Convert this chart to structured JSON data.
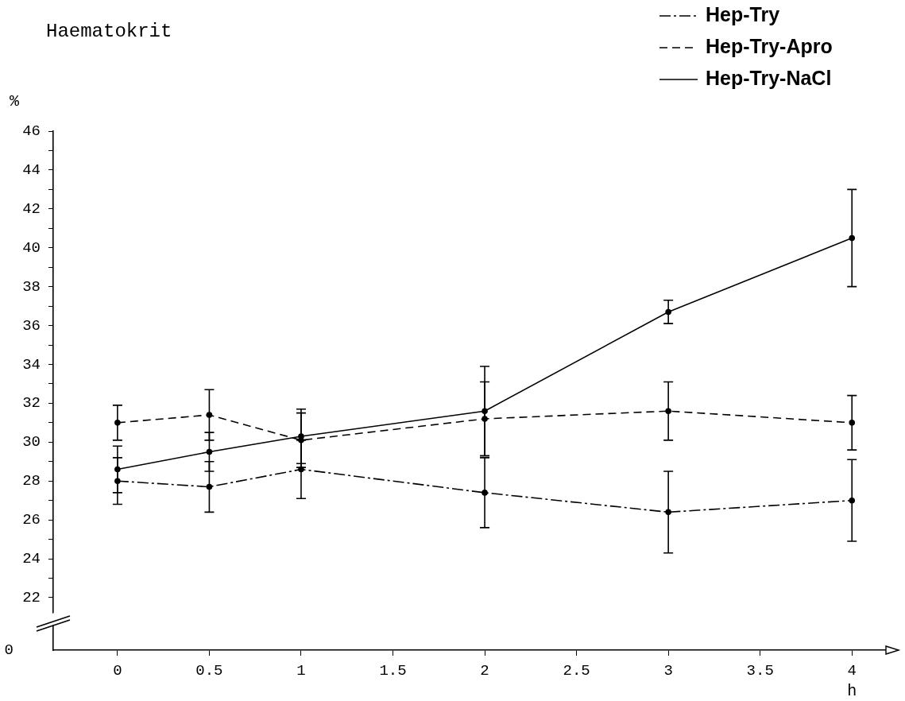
{
  "chart_data": {
    "type": "line",
    "title": "Haematokrit",
    "ylabel": "%",
    "xlabel": "h",
    "x": [
      0,
      0.5,
      1,
      2,
      3,
      4
    ],
    "series": [
      {
        "name": "Hep-Try",
        "color": "#000000",
        "line_style": "dotted",
        "values": [
          28.0,
          27.7,
          28.6,
          27.4,
          26.4,
          27.0
        ],
        "errors": [
          1.2,
          1.3,
          1.5,
          1.8,
          2.1,
          2.1
        ]
      },
      {
        "name": "Hep-Try-Apro",
        "color": "#000000",
        "line_style": "dashed",
        "values": [
          31.0,
          31.4,
          30.1,
          31.2,
          31.6,
          31.0
        ],
        "errors": [
          0.9,
          1.3,
          1.4,
          1.9,
          1.5,
          1.4
        ]
      },
      {
        "name": "Hep-Try-NaCl",
        "color": "#000000",
        "line_style": "solid",
        "values": [
          28.6,
          29.5,
          30.3,
          31.6,
          36.7,
          40.5
        ],
        "errors": [
          1.2,
          1.0,
          1.4,
          2.3,
          0.6,
          2.5
        ]
      }
    ],
    "xlim": [
      -0.35,
      4.25
    ],
    "xticks": [
      0,
      0.5,
      1,
      1.5,
      2,
      2.5,
      3,
      3.5,
      4
    ],
    "ylim": [
      19.3,
      46
    ],
    "yticks": [
      {
        "value": 21,
        "label": null
      },
      22,
      {
        "value": 23,
        "label": null
      },
      24,
      {
        "value": 25,
        "label": null
      },
      26,
      {
        "value": 27,
        "label": null
      },
      28,
      {
        "value": 29,
        "label": null
      },
      30,
      {
        "value": 31,
        "label": null
      },
      32,
      {
        "value": 33,
        "label": null
      },
      34,
      {
        "value": 35,
        "label": null
      },
      36,
      {
        "value": 37,
        "label": null
      },
      38,
      {
        "value": 39,
        "label": null
      },
      40,
      {
        "value": 41,
        "label": null
      },
      42,
      {
        "value": 43,
        "label": null
      },
      44,
      {
        "value": 45,
        "label": null
      },
      46
    ],
    "annotations": [
      "0"
    ],
    "marker": "circle",
    "legend": "top right"
  }
}
